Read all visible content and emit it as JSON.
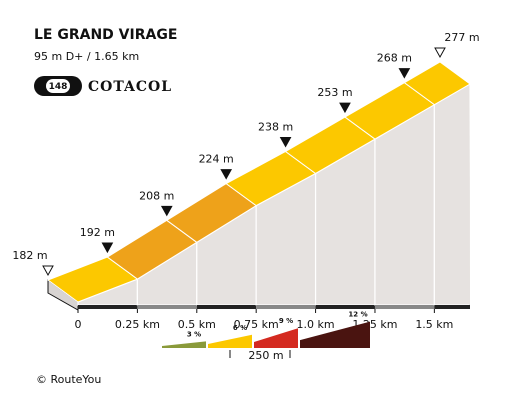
{
  "chart_data": {
    "type": "climb-profile",
    "title": "LE GRAND VIRAGE",
    "subtitle": "95 m D+ / 1.65 km",
    "badge": "148",
    "brand": "COTACOL",
    "x": [
      0,
      0.25,
      0.5,
      0.75,
      1.0,
      1.25,
      1.5,
      1.65
    ],
    "values": [
      182,
      192,
      208,
      224,
      238,
      253,
      268,
      277
    ],
    "value_labels": [
      "182 m",
      "192 m",
      "208 m",
      "224 m",
      "238 m",
      "253 m",
      "268 m",
      "277 m"
    ],
    "segment_colors": [
      "#fcc800",
      "#eea21a",
      "#eea21a",
      "#fcc800",
      "#fcc800",
      "#fcc800",
      "#fcc800"
    ],
    "xticks": [
      0,
      {
        "value": 0.25,
        "label": "0.25 km"
      },
      {
        "value": 0.5,
        "label": "0.5 km"
      },
      {
        "value": 0.75,
        "label": "0.75 km"
      },
      {
        "value": 1.0,
        "label": "1.0 km"
      },
      {
        "value": 1.25,
        "label": "1.25 km"
      },
      {
        "value": 1.5,
        "label": "1.5 km"
      }
    ],
    "legend": {
      "grades": [
        {
          "value": 3,
          "label": "3 %",
          "color": "#8a9a3a"
        },
        {
          "value": 6,
          "label": "6 %",
          "color": "#fcc800"
        },
        {
          "value": 9,
          "label": "9 %",
          "color": "#d42a20"
        },
        {
          "value": 12,
          "label": "12 %",
          "color": "#4a1410"
        }
      ],
      "scale_label": "250 m"
    },
    "footer": "© RouteYou"
  }
}
